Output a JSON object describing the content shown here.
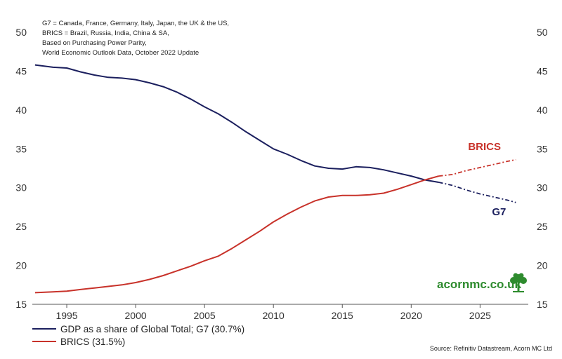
{
  "notes": [
    "G7 = Canada, France, Germany, Italy, Japan, the UK & the US,",
    "BRICS = Brazil, Russia, India, China & SA,",
    "Based on Purchasing Power Parity,",
    "World Economic Outlook Data, October 2022 Update"
  ],
  "brand": "acornmc.co.uk",
  "source": "Source: Refinitiv Datastream, Acorn MC Ltd",
  "colors": {
    "g7": "#1b1f5e",
    "brics": "#c8322a",
    "brand": "#2e8b2e"
  },
  "chart_data": {
    "type": "line",
    "title": "",
    "xlabel": "",
    "ylabel": "",
    "xlim": [
      1992.5,
      2028.5
    ],
    "ylim": [
      15,
      50
    ],
    "xticks": [
      1995,
      2000,
      2005,
      2010,
      2015,
      2020,
      2025
    ],
    "yticks": [
      15,
      20,
      25,
      30,
      35,
      40,
      45,
      50
    ],
    "forecast_from": 2022,
    "grid": false,
    "legend_position": "bottom-left",
    "series": [
      {
        "name": "GDP as a share of Global Total; G7 (30.7%)",
        "label": "G7",
        "x": [
          1992.7,
          1994,
          1995,
          1996,
          1997,
          1998,
          1999,
          2000,
          2001,
          2002,
          2003,
          2004,
          2005,
          2006,
          2007,
          2008,
          2009,
          2010,
          2011,
          2012,
          2013,
          2014,
          2015,
          2016,
          2017,
          2018,
          2019,
          2020,
          2021,
          2022,
          2023,
          2024,
          2025,
          2026,
          2027,
          2027.6
        ],
        "values": [
          45.8,
          45.5,
          45.4,
          44.9,
          44.5,
          44.2,
          44.1,
          43.9,
          43.5,
          43,
          42.3,
          41.4,
          40.4,
          39.5,
          38.4,
          37.2,
          36.1,
          35,
          34.3,
          33.5,
          32.8,
          32.5,
          32.4,
          32.7,
          32.6,
          32.3,
          31.9,
          31.5,
          31,
          30.7,
          30.3,
          29.7,
          29.2,
          28.8,
          28.4,
          28.1
        ]
      },
      {
        "name": "BRICS (31.5%)",
        "label": "BRICS",
        "x": [
          1992.7,
          1994,
          1995,
          1996,
          1997,
          1998,
          1999,
          2000,
          2001,
          2002,
          2003,
          2004,
          2005,
          2006,
          2007,
          2008,
          2009,
          2010,
          2011,
          2012,
          2013,
          2014,
          2015,
          2016,
          2017,
          2018,
          2019,
          2020,
          2021,
          2022,
          2023,
          2024,
          2025,
          2026,
          2027,
          2027.6
        ],
        "values": [
          16.5,
          16.6,
          16.7,
          16.9,
          17.1,
          17.3,
          17.5,
          17.8,
          18.2,
          18.7,
          19.3,
          19.9,
          20.6,
          21.2,
          22.2,
          23.3,
          24.4,
          25.6,
          26.6,
          27.5,
          28.3,
          28.8,
          29,
          29,
          29.1,
          29.3,
          29.8,
          30.4,
          31,
          31.5,
          31.7,
          32.2,
          32.6,
          33,
          33.4,
          33.6
        ]
      }
    ]
  }
}
